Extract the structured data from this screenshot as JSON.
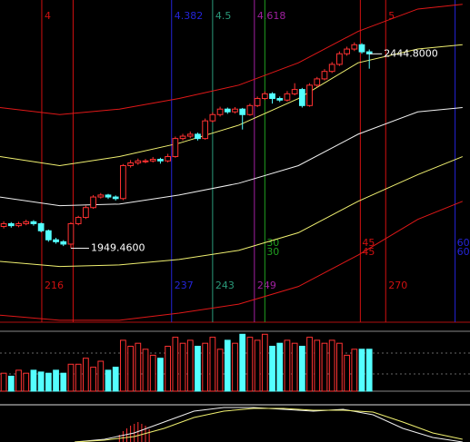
{
  "chart_data": [
    {
      "type": "candlestick",
      "xlim": [
        0,
        63
      ],
      "ylim": [
        1761,
        2582
      ],
      "up_color": "#ff3232",
      "down_color": "#54ffff",
      "open": [
        2005,
        2012,
        2007,
        2012,
        2017,
        2012,
        1994,
        1971,
        1966,
        1960,
        2012,
        2028,
        2053,
        2080,
        2085,
        2080,
        2076,
        2160,
        2167,
        2172,
        2172,
        2176,
        2172,
        2183,
        2229,
        2235,
        2240,
        2229,
        2274,
        2290,
        2304,
        2297,
        2304,
        2290,
        2313,
        2331,
        2343,
        2331,
        2327,
        2343,
        2354,
        2313,
        2365,
        2381,
        2400,
        2418,
        2445,
        2457,
        2468,
        2450
      ],
      "high": [
        2018,
        2016,
        2017,
        2022,
        2021,
        2015,
        1997,
        1976,
        1970,
        2016,
        2032,
        2058,
        2085,
        2090,
        2088,
        2084,
        2164,
        2174,
        2178,
        2177,
        2182,
        2180,
        2190,
        2234,
        2241,
        2247,
        2244,
        2280,
        2296,
        2310,
        2308,
        2309,
        2307,
        2318,
        2336,
        2349,
        2347,
        2336,
        2350,
        2370,
        2358,
        2370,
        2386,
        2406,
        2424,
        2451,
        2463,
        2474,
        2472,
        2456
      ],
      "low": [
        2000,
        2002,
        2003,
        2008,
        2007,
        1990,
        1966,
        1961,
        1955,
        1949.46,
        2008,
        2024,
        2050,
        2076,
        2075,
        2071,
        2072,
        2155,
        2162,
        2166,
        2168,
        2165,
        2168,
        2180,
        2224,
        2230,
        2224,
        2226,
        2270,
        2285,
        2292,
        2293,
        2252,
        2287,
        2309,
        2327,
        2318,
        2322,
        2323,
        2339,
        2308,
        2310,
        2360,
        2377,
        2396,
        2414,
        2440,
        2452,
        2445,
        2407
      ],
      "close": [
        2012,
        2007,
        2012,
        2017,
        2012,
        1994,
        1971,
        1966,
        1960,
        2012,
        2028,
        2053,
        2080,
        2085,
        2080,
        2076,
        2160,
        2167,
        2172,
        2172,
        2176,
        2172,
        2183,
        2229,
        2235,
        2240,
        2229,
        2274,
        2290,
        2304,
        2297,
        2304,
        2290,
        2313,
        2331,
        2343,
        2331,
        2327,
        2343,
        2354,
        2313,
        2365,
        2381,
        2400,
        2418,
        2445,
        2457,
        2468,
        2450,
        2444.8
      ],
      "band_x": [
        0,
        8,
        16,
        24,
        32,
        40,
        48,
        56,
        62
      ],
      "series": [
        {
          "color": "#e01818",
          "values": [
            2308,
            2290,
            2304,
            2331,
            2365,
            2422,
            2502,
            2559,
            2571
          ]
        },
        {
          "color": "#f0f070",
          "values": [
            2183,
            2160,
            2183,
            2217,
            2263,
            2331,
            2422,
            2457,
            2468
          ]
        },
        {
          "color": "#f0f0f0",
          "values": [
            2080,
            2058,
            2062,
            2085,
            2115,
            2160,
            2240,
            2297,
            2308
          ]
        },
        {
          "color": "#f0f070",
          "values": [
            1916,
            1903,
            1907,
            1921,
            1944,
            1989,
            2069,
            2137,
            2183
          ]
        },
        {
          "color": "#e01818",
          "values": [
            1779,
            1766,
            1766,
            1784,
            1807,
            1852,
            1932,
            2023,
            2069
          ]
        }
      ],
      "annotations": [
        {
          "label": "2444.8000",
          "value": 2444.8,
          "x": 49
        },
        {
          "label": "1949.4600",
          "value": 1949.46,
          "x": 9
        }
      ],
      "markers": [
        {
          "x": 5.6,
          "color": "#d01010",
          "top": "4",
          "bottom": "216"
        },
        {
          "x": 9.8,
          "color": "#d01010"
        },
        {
          "x": 23,
          "color": "#2424d8",
          "top": "4.382",
          "bottom": "237"
        },
        {
          "x": 28.5,
          "color": "#2a9a7a",
          "top": "4.5",
          "bottom": "243"
        },
        {
          "x": 34.1,
          "color": "#a020a0",
          "top": "4.618",
          "bottom": "249"
        },
        {
          "x": 35.5,
          "color": "#20a020",
          "mid": [
            "30",
            "30"
          ]
        },
        {
          "x": 48.3,
          "color": "#d01010",
          "mid": [
            "45",
            "45"
          ]
        },
        {
          "x": 51.7,
          "color": "#d01010",
          "top": "5",
          "bottom": "270"
        },
        {
          "x": 61,
          "color": "#2424d8",
          "mid": [
            "60",
            "60"
          ]
        }
      ]
    },
    {
      "type": "bar",
      "ylim": [
        0,
        100
      ],
      "values": [
        30,
        25,
        35,
        30,
        35,
        32,
        30,
        35,
        30,
        45,
        45,
        55,
        40,
        50,
        35,
        40,
        85,
        75,
        80,
        70,
        60,
        55,
        75,
        90,
        80,
        85,
        75,
        80,
        90,
        70,
        85,
        80,
        95,
        90,
        85,
        95,
        75,
        80,
        85,
        80,
        75,
        90,
        85,
        80,
        85,
        80,
        60,
        70,
        70,
        70
      ]
    },
    {
      "type": "line",
      "ylim": [
        0,
        40
      ],
      "x": [
        10,
        14,
        18,
        22,
        26,
        30,
        34,
        38,
        42,
        46,
        50,
        54,
        58,
        62
      ],
      "series": [
        {
          "color": "#f0f0f0",
          "values": [
            0,
            3,
            10,
            22,
            34,
            38,
            38,
            36,
            34,
            36,
            30,
            15,
            5,
            0
          ]
        },
        {
          "color": "#f0f070",
          "values": [
            0,
            2,
            6,
            15,
            27,
            34,
            37,
            37,
            35,
            35,
            33,
            22,
            10,
            3
          ]
        }
      ],
      "hist": {
        "color": "#ff3232",
        "x": [
          16,
          16.5,
          17,
          17.5,
          18,
          18.5,
          19,
          19.5,
          20
        ],
        "values": [
          8,
          12,
          15,
          18,
          20,
          22,
          20,
          18,
          14
        ]
      }
    }
  ]
}
